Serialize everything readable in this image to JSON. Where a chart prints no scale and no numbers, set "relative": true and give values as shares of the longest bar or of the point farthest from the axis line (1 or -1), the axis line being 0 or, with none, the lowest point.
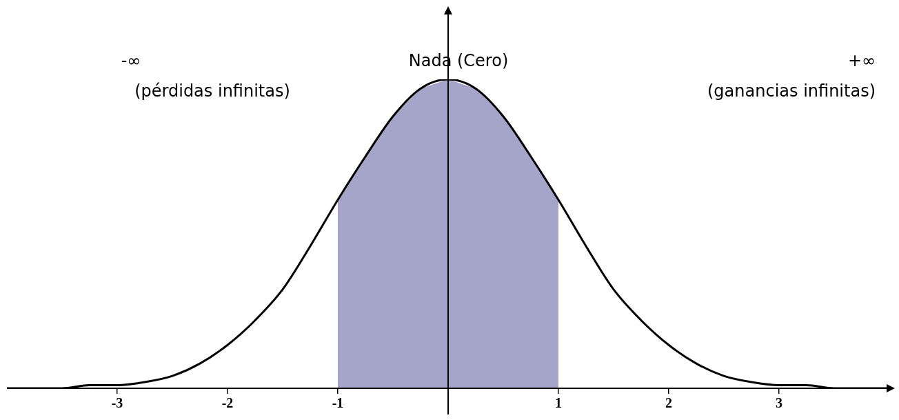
{
  "chart_data": {
    "type": "line",
    "relative": true,
    "x": [
      -4,
      -3.75,
      -3.5,
      -3.25,
      -3,
      -2.75,
      -2.5,
      -2.25,
      -2,
      -1.75,
      -1.5,
      -1.25,
      -1,
      -0.75,
      -0.5,
      -0.25,
      0,
      0.25,
      0.5,
      0.75,
      1,
      1.25,
      1.5,
      1.75,
      2,
      2.25,
      2.5,
      2.75,
      3,
      3.25,
      3.5,
      3.75,
      4
    ],
    "series": [
      {
        "color": "#000000",
        "values": [
          0,
          0,
          0,
          0.01,
          0.01,
          0.02,
          0.04,
          0.08,
          0.14,
          0.22,
          0.32,
          0.46,
          0.61,
          0.75,
          0.88,
          0.97,
          1,
          0.97,
          0.88,
          0.75,
          0.61,
          0.46,
          0.32,
          0.22,
          0.14,
          0.08,
          0.04,
          0.02,
          0.01,
          0.01,
          0,
          0,
          0
        ]
      }
    ],
    "xlim": [
      -4,
      4
    ],
    "xticks": [
      -3,
      -2,
      -1,
      1,
      2,
      3
    ],
    "bands": [
      {
        "axis": "x",
        "from": -1,
        "to": 1,
        "color": "#1f1f7a"
      }
    ],
    "annotations": [
      "-∞",
      "(pérdidas infinitas)",
      "Nada (Cero)",
      "+∞",
      "(ganancias infinitas)"
    ],
    "grid": false,
    "legend": false
  }
}
